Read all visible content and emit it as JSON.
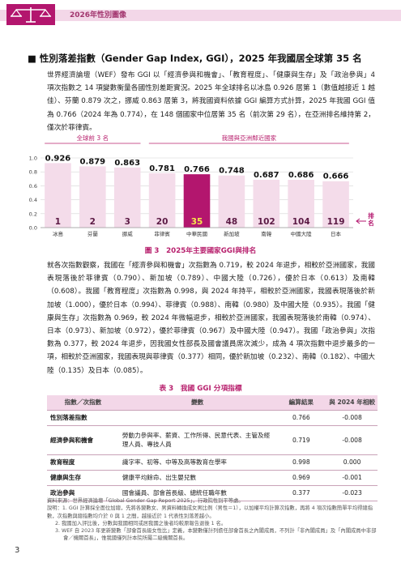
{
  "header": {
    "title": "2026年性別圖像"
  },
  "section": {
    "title": "■ 性別落差指數（Gender Gap Index, GGI），2025 年我國居全球第 35 名"
  },
  "paragraph1": "世界經濟論壇（WEF）發布 GGI 以「經濟參與和機會」、「教育程度」、「健康與生存」及「政治參與」4 項次指數之 14 項變數衡量各國性別差距實況。2025 年全球排名以冰島 0.926 居第 1（數值越接近 1 越佳）、芬蘭 0.879 次之，挪威 0.863 居第 3，將我國資料依據 GGI 編算方式計算，2025 年我國 GGI 值為 0.766（2024 年為 0.774），在 148 個國家中位居第 35 名（前次第 29 名），在亞洲排名維持第 2，僅次於菲律賓。",
  "chart_data": {
    "type": "bar",
    "group_labels": [
      "全球前 3 名",
      "我國與亞洲鄰近國家"
    ],
    "categories": [
      "冰島",
      "芬蘭",
      "挪威",
      "菲律賓",
      "中華民國",
      "新加坡",
      "南韓",
      "中國大陸",
      "日本"
    ],
    "values": [
      0.926,
      0.879,
      0.863,
      0.781,
      0.766,
      0.748,
      0.687,
      0.686,
      0.666
    ],
    "value_labels": [
      "0.926",
      "0.879",
      "0.863",
      "0.781",
      "0.766",
      "0.748",
      "0.687",
      "0.686",
      "0.666"
    ],
    "ranks": [
      "1",
      "2",
      "3",
      "20",
      "35",
      "48",
      "102",
      "104",
      "119"
    ],
    "rank_label": "排名",
    "yticks": [
      "0.0",
      "0.2",
      "0.4",
      "0.6",
      "0.8",
      "1.0"
    ],
    "ylim": [
      0,
      1.0
    ],
    "highlight_index": 4,
    "colors": {
      "bar": "#f4dcea",
      "highlight": "#b3166e",
      "rank_text": "#5b1a44",
      "rank_highlight": "#f6e84a",
      "group_top3": "#b8216e",
      "group_asia": "#b8216e"
    },
    "caption": "圖 3　2025年主要國家GGI與排名"
  },
  "paragraph2": "就各次指數觀察，我國在「經濟參與和機會」次指數為 0.719，較 2024 年退步，相較於亞洲國家，我國表現落後於菲律賓（0.790）、新加坡（0.789）、中國大陸（0.726），優於日本（0.613）及南韓（0.608）。我國「教育程度」次指數為 0.998，與 2024 年持平，相較於亞洲國家，我國表現落後於新加坡（1.000），優於日本（0.994）、菲律賓（0.988）、南韓（0.980）及中國大陸（0.935）。我國「健康與生存」次指數為 0.969，較 2024 年微幅退步，相較於亞洲國家，我國表現落後於南韓（0.974）、日本（0.973）、新加坡（0.972），優於菲律賓（0.967）及中國大陸（0.947）。我國「政治參與」次指數為 0.377，較 2024 年退步，因我國女性部長及國會議員席次減少，成為 4 項次指數中退步最多的一項，相較於亞洲國家，我國表現與菲律賓（0.377）相同，優於新加坡（0.232）、南韓（0.182）、中國大陸（0.135）及日本（0.085）。",
  "table": {
    "caption": "表 3　我國 GGI 分項指標",
    "headers": [
      "指數／次指數",
      "變數",
      "編算結果",
      "與 2024 年相較"
    ],
    "rows": [
      {
        "category": "性別落差指數",
        "variables": "",
        "result": "0.766",
        "change": "-0.008"
      },
      {
        "category": "經濟參與和機會",
        "variables": "勞動力參與率、薪資、工作所得、民意代表、主管及經理人員、專技人員",
        "result": "0.719",
        "change": "-0.008"
      },
      {
        "category": "教育程度",
        "variables": "識字率、初等、中等及高等教育在學率",
        "result": "0.998",
        "change": "0.000"
      },
      {
        "category": "健康與生存",
        "variables": "健康平均餘命、出生嬰兒數",
        "result": "0.969",
        "change": "-0.001"
      },
      {
        "category": "政治參與",
        "variables": "國會議員、部會首長級、總統任職年數",
        "result": "0.377",
        "change": "-0.023"
      }
    ]
  },
  "notes": {
    "source": "資料來源：世界經濟論壇「Global Gender Gap Report 2025」，行政院性別平等處。",
    "n1": "說明：1. GGI 計算採全面位加總，先將各變數女、男資料轉換成女男比例（男性＝1），以加權平均計算次指數，再將 4 項次指數簡單平均得總指數，次指數與總指數均介於 0 與 1 之間，越接近於 1 代表性別落差越小。",
    "n2": "2. 我國加入評比後，分數與我國相同或居我國之後者均較原報告退後 1 名。",
    "n3": "3. WEF 自 2023 年更新變數「部會首長級女性比」定義，本變數僅計列擔任部會首長之內閣成員，不列計「非內閣成員」及「內閣成員中非部會／機關首長」，惟我國僅列計本院所屬二級機關首長。"
  },
  "page_number": "3"
}
